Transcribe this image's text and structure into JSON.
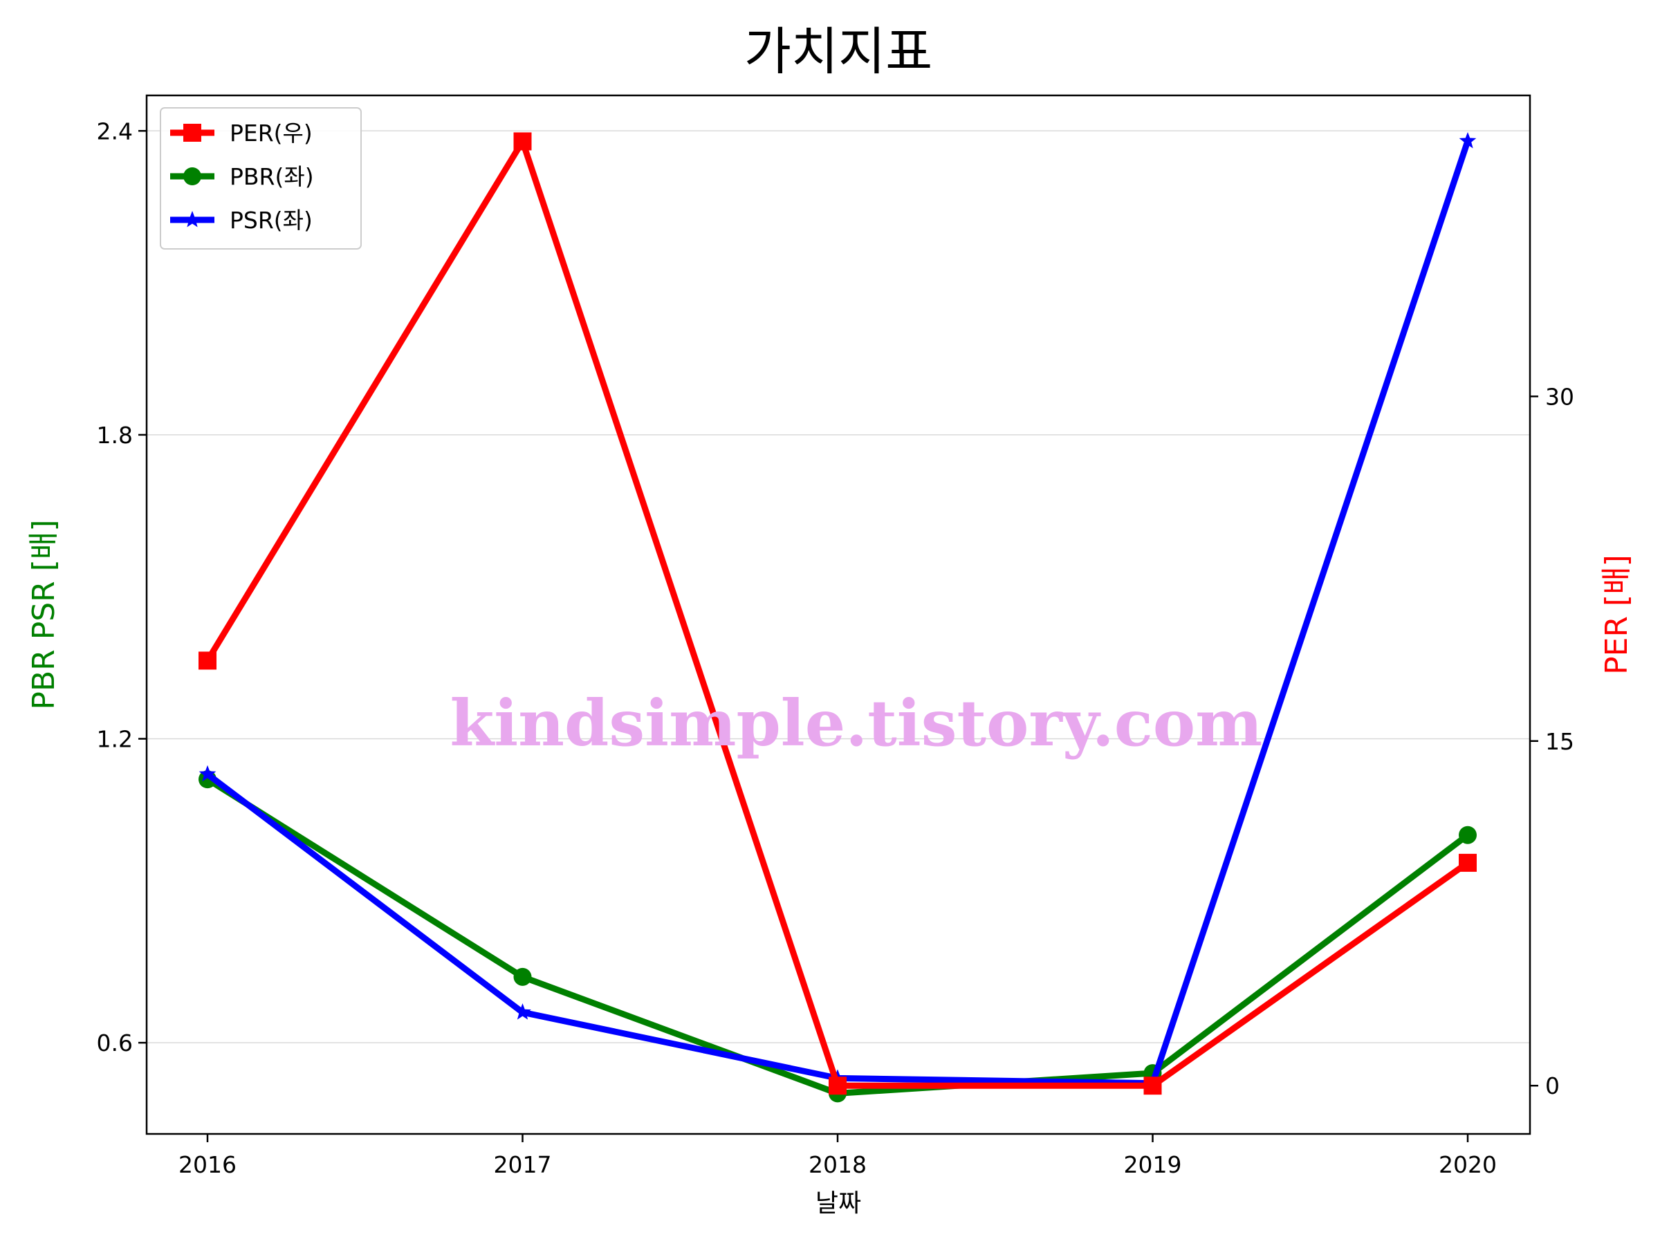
{
  "chart_data": {
    "type": "line",
    "title": "가치지표",
    "xlabel": "날짜",
    "ylabel_left": "PBR PSR [배]",
    "ylabel_right": "PER [배]",
    "categories": [
      "2016",
      "2017",
      "2018",
      "2019",
      "2020"
    ],
    "left_axis": {
      "ylim": [
        0.42,
        2.47
      ],
      "ticks": [
        "0.6",
        "1.2",
        "1.8",
        "2.4"
      ],
      "tick_values": [
        0.6,
        1.2,
        1.8,
        2.4
      ]
    },
    "right_axis": {
      "ylim": [
        -2.1,
        43.1
      ],
      "ticks": [
        "0",
        "15",
        "30"
      ],
      "tick_values": [
        0,
        15,
        30
      ]
    },
    "grid": "horizontal",
    "legend_position": "upper-left",
    "series": [
      {
        "name": "PER(우)",
        "axis": "right",
        "color": "#ff0000",
        "marker": "square",
        "values": [
          18.5,
          41.1,
          0.0,
          0.0,
          9.7
        ]
      },
      {
        "name": "PBR(좌)",
        "axis": "left",
        "color": "#008000",
        "marker": "circle",
        "values": [
          1.12,
          0.73,
          0.5,
          0.54,
          1.01
        ]
      },
      {
        "name": "PSR(좌)",
        "axis": "left",
        "color": "#0000ff",
        "marker": "star",
        "values": [
          1.13,
          0.66,
          0.53,
          0.52,
          2.38
        ]
      }
    ],
    "watermark": "kindsimple.tistory.com"
  }
}
